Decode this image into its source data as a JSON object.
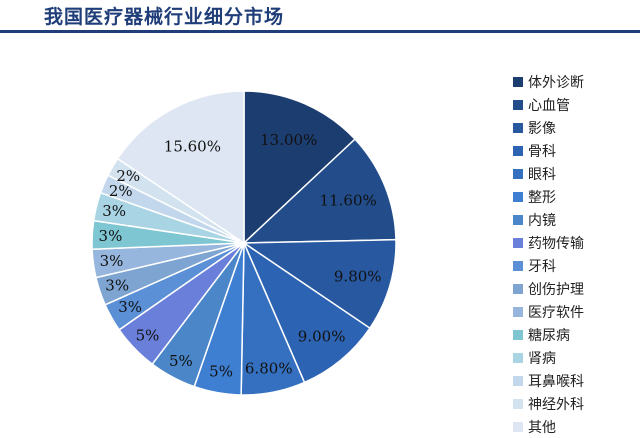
{
  "title": "我国医疗器械行业细分市场",
  "chart_data": {
    "type": "pie",
    "title": "我国医疗器械行业细分市场",
    "start": "12 o'clock, clockwise",
    "legend_position": "right",
    "slices": [
      {
        "label": "体外诊断",
        "value": 13.0,
        "display": "13.00%",
        "color": "#1c3d70"
      },
      {
        "label": "心血管",
        "value": 11.6,
        "display": "11.60%",
        "color": "#224d8a"
      },
      {
        "label": "影像",
        "value": 9.8,
        "display": "9.80%",
        "color": "#2858a0"
      },
      {
        "label": "骨科",
        "value": 9.0,
        "display": "9.00%",
        "color": "#2d63b3"
      },
      {
        "label": "眼科",
        "value": 6.8,
        "display": "6.80%",
        "color": "#3570c0"
      },
      {
        "label": "整形",
        "value": 5,
        "display": "5%",
        "color": "#3f7fd2"
      },
      {
        "label": "内镜",
        "value": 5,
        "display": "5%",
        "color": "#4a86c8"
      },
      {
        "label": "药物传输",
        "value": 5,
        "display": "5%",
        "color": "#6a7fda"
      },
      {
        "label": "牙科",
        "value": 3,
        "display": "3%",
        "color": "#5b8fd6"
      },
      {
        "label": "创伤护理",
        "value": 3,
        "display": "3%",
        "color": "#7ea4d2"
      },
      {
        "label": "医疗软件",
        "value": 3,
        "display": "3%",
        "color": "#97b6dd"
      },
      {
        "label": "糖尿病",
        "value": 3,
        "display": "3%",
        "color": "#7fc6d3"
      },
      {
        "label": "肾病",
        "value": 3,
        "display": "3%",
        "color": "#a9d4e4"
      },
      {
        "label": "耳鼻喉科",
        "value": 2,
        "display": "2%",
        "color": "#c2d7ec"
      },
      {
        "label": "神经外科",
        "value": 2,
        "display": "2%",
        "color": "#d3e2ef"
      },
      {
        "label": "其他",
        "value": 15.6,
        "display": "15.60%",
        "color": "#dde6f2"
      }
    ]
  }
}
